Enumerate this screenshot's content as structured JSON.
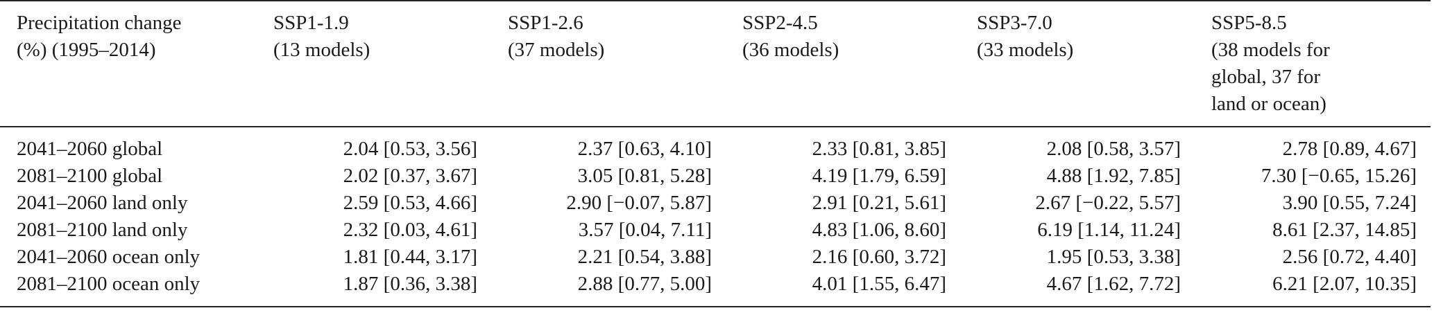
{
  "table": {
    "corner_header": [
      "Precipitation change",
      "(%) (1995–2014)"
    ],
    "columns": [
      {
        "lines": [
          "SSP1-1.9",
          "(13 models)"
        ]
      },
      {
        "lines": [
          "SSP1-2.6",
          "(37 models)"
        ]
      },
      {
        "lines": [
          "SSP2-4.5",
          "(36 models)"
        ]
      },
      {
        "lines": [
          "SSP3-7.0",
          "(33 models)"
        ]
      },
      {
        "lines": [
          "SSP5-8.5",
          "(38 models for",
          "global, 37 for",
          "land or ocean)"
        ]
      }
    ],
    "rows": [
      {
        "label": "2041–2060 global",
        "cells": [
          "2.04 [0.53, 3.56]",
          "2.37 [0.63, 4.10]",
          "2.33 [0.81, 3.85]",
          "2.08 [0.58, 3.57]",
          "2.78 [0.89, 4.67]"
        ]
      },
      {
        "label": "2081–2100 global",
        "cells": [
          "2.02 [0.37, 3.67]",
          "3.05 [0.81, 5.28]",
          "4.19 [1.79, 6.59]",
          "4.88 [1.92, 7.85]",
          "7.30 [−0.65, 15.26]"
        ]
      },
      {
        "label": "2041–2060 land only",
        "cells": [
          "2.59 [0.53, 4.66]",
          "2.90 [−0.07, 5.87]",
          "2.91 [0.21, 5.61]",
          "2.67 [−0.22, 5.57]",
          "3.90 [0.55, 7.24]"
        ]
      },
      {
        "label": "2081–2100 land only",
        "cells": [
          "2.32 [0.03, 4.61]",
          "3.57 [0.04, 7.11]",
          "4.83 [1.06, 8.60]",
          "6.19 [1.14, 11.24]",
          "8.61 [2.37, 14.85]"
        ]
      },
      {
        "label": "2041–2060 ocean only",
        "cells": [
          "1.81 [0.44, 3.17]",
          "2.21 [0.54, 3.88]",
          "2.16 [0.60, 3.72]",
          "1.95 [0.53, 3.38]",
          "2.56 [0.72, 4.40]"
        ]
      },
      {
        "label": "2081–2100 ocean only",
        "cells": [
          "1.87 [0.36, 3.38]",
          "2.88 [0.77, 5.00]",
          "4.01 [1.55, 6.47]",
          "4.67 [1.62, 7.72]",
          "6.21 [2.07, 10.35]"
        ]
      }
    ]
  }
}
